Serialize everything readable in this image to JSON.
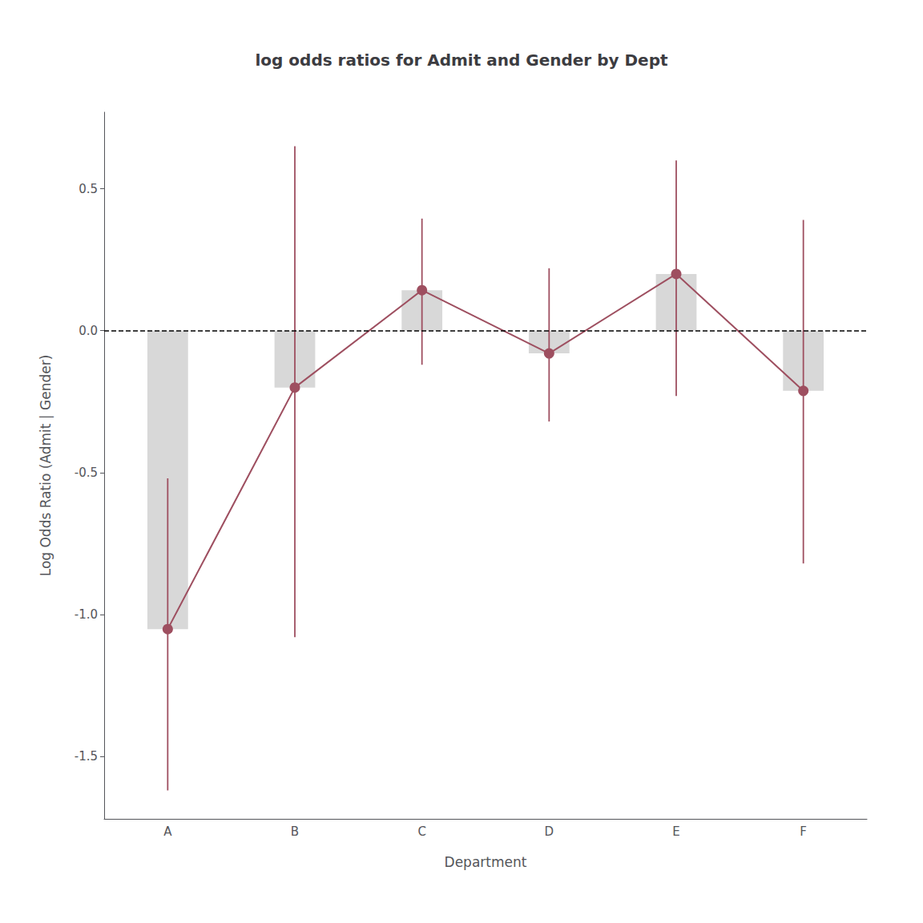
{
  "chart_data": {
    "type": "bar",
    "title": "log odds ratios for Admit and Gender by Dept",
    "x_label": "Department",
    "y_label": "Log Odds Ratio (Admit | Gender)",
    "categories": [
      "A",
      "B",
      "C",
      "D",
      "E",
      "F"
    ],
    "series": [
      {
        "type": "bar",
        "color": "#d8d8d8",
        "values": [
          -1.0513,
          -0.2001,
          0.1429,
          -0.08,
          0.2,
          -0.212
        ]
      },
      {
        "type": "line",
        "color": "#9e4f60",
        "marker": "circle",
        "values": [
          -1.0513,
          -0.2001,
          0.1429,
          -0.08,
          0.2,
          -0.212
        ],
        "ci_lower": [
          -1.62,
          -1.08,
          -0.12,
          -0.32,
          -0.23,
          -0.82
        ],
        "ci_upper": [
          -0.52,
          0.65,
          0.395,
          0.22,
          0.6,
          0.39
        ]
      }
    ],
    "reference_lines": [
      {
        "value": 0,
        "line_style": "dashed",
        "color": "#000000"
      }
    ],
    "ylim": [
      -1.72,
      0.77
    ],
    "yticks": [
      -1.5,
      {
        "value": -1.0,
        "label": "-1.0"
      },
      -0.5,
      {
        "value": 0,
        "label": "0.0"
      },
      0.5
    ],
    "grid": false
  }
}
